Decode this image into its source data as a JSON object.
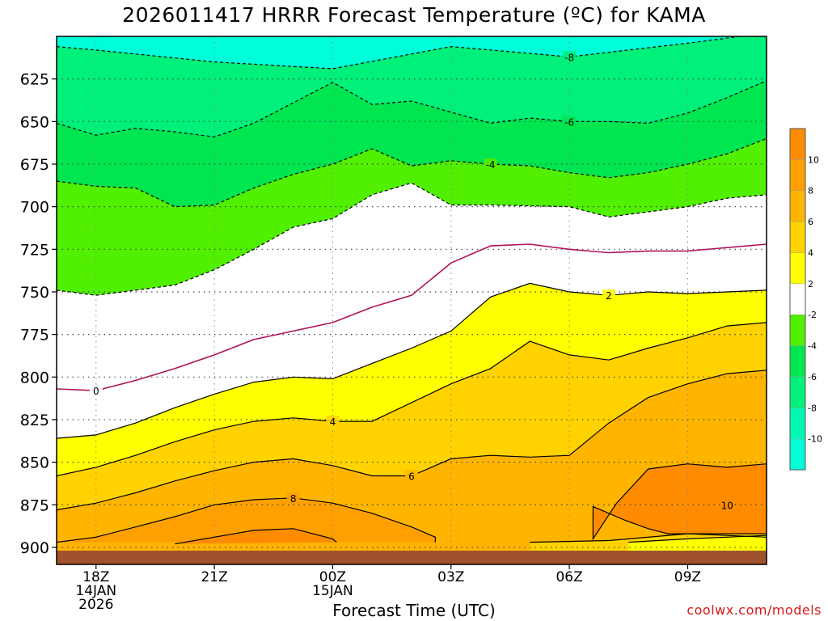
{
  "chart_data": {
    "type": "contour",
    "title": "2026011417 HRRR Forecast Temperature (ºC) for KAMA",
    "xlabel": "Forecast Time (UTC)",
    "ylabel": "",
    "credit": "coolwx.com/models",
    "y_axis": {
      "scale": "pressure (inverted)",
      "ylim": [
        910,
        600
      ],
      "ticks": [
        625,
        650,
        675,
        700,
        725,
        750,
        775,
        800,
        825,
        850,
        875,
        900
      ]
    },
    "x_axis": {
      "xlim_hours_from_start": [
        -1,
        17
      ],
      "tick_hours": [
        0,
        3,
        6,
        9,
        12,
        15
      ],
      "tick_labels": [
        {
          "label": "18Z",
          "sub1": "14JAN",
          "sub2": "2026"
        },
        {
          "label": "21Z",
          "sub1": "",
          "sub2": ""
        },
        {
          "label": "00Z",
          "sub1": "15JAN",
          "sub2": ""
        },
        {
          "label": "03Z",
          "sub1": "",
          "sub2": ""
        },
        {
          "label": "06Z",
          "sub1": "",
          "sub2": ""
        },
        {
          "label": "09Z",
          "sub1": "",
          "sub2": ""
        }
      ]
    },
    "grid": true,
    "colorbar": {
      "position": "right",
      "tick_labels": [
        "10",
        "8",
        "6",
        "4",
        "2",
        "-2",
        "-4",
        "-6",
        "-8",
        "-10"
      ],
      "bands": [
        {
          "range": [
            10,
            12
          ],
          "color": "#ff8c00"
        },
        {
          "range": [
            8,
            10
          ],
          "color": "#ffa000"
        },
        {
          "range": [
            6,
            8
          ],
          "color": "#ffb400"
        },
        {
          "range": [
            4,
            6
          ],
          "color": "#ffd200"
        },
        {
          "range": [
            2,
            4
          ],
          "color": "#ffff00"
        },
        {
          "range": [
            -2,
            2
          ],
          "color": "#ffffff"
        },
        {
          "range": [
            -4,
            -2
          ],
          "color": "#50f000"
        },
        {
          "range": [
            -6,
            -4
          ],
          "color": "#00e650"
        },
        {
          "range": [
            -8,
            -6
          ],
          "color": "#00f07a"
        },
        {
          "range": [
            -10,
            -8
          ],
          "color": "#00fab4"
        },
        {
          "range": [
            -12,
            -10
          ],
          "color": "#00ffd8"
        }
      ]
    },
    "ground_color": "#a0522d",
    "isotherms": [
      {
        "temp": -8,
        "label": "-8",
        "label_hour": 12,
        "style": "dashed",
        "points": [
          [
            -1,
            606
          ],
          [
            0,
            608
          ],
          [
            3,
            615
          ],
          [
            6,
            619
          ],
          [
            9,
            606
          ],
          [
            12,
            612
          ],
          [
            15,
            604
          ],
          [
            17,
            598
          ]
        ]
      },
      {
        "temp": -6,
        "label": "-6",
        "label_hour": 12,
        "style": "dashed",
        "points": [
          [
            -1,
            651
          ],
          [
            0,
            658
          ],
          [
            1,
            654
          ],
          [
            2,
            656
          ],
          [
            3,
            659
          ],
          [
            4,
            651
          ],
          [
            6,
            627
          ],
          [
            7,
            640
          ],
          [
            8,
            638
          ],
          [
            10,
            651
          ],
          [
            11,
            648
          ],
          [
            12,
            650
          ],
          [
            13,
            650
          ],
          [
            14,
            651
          ],
          [
            15,
            645
          ],
          [
            16,
            636
          ],
          [
            17,
            626
          ]
        ]
      },
      {
        "temp": -4,
        "label": "-4",
        "label_hour": 10,
        "style": "dashed",
        "points": [
          [
            -1,
            685
          ],
          [
            0,
            688
          ],
          [
            1,
            689
          ],
          [
            2,
            700
          ],
          [
            3,
            699
          ],
          [
            4,
            689
          ],
          [
            5,
            681
          ],
          [
            6,
            675
          ],
          [
            7,
            666
          ],
          [
            8,
            676
          ],
          [
            9,
            673
          ],
          [
            10,
            675
          ],
          [
            11,
            676
          ],
          [
            12,
            680
          ],
          [
            13,
            683
          ],
          [
            14,
            680
          ],
          [
            15,
            675
          ],
          [
            16,
            669
          ],
          [
            17,
            660
          ]
        ]
      },
      {
        "temp": -2,
        "label": "",
        "label_hour": null,
        "style": "dashed",
        "points": [
          [
            -1,
            749
          ],
          [
            0,
            752
          ],
          [
            1,
            749
          ],
          [
            2,
            746
          ],
          [
            3,
            737
          ],
          [
            4,
            725
          ],
          [
            5,
            712
          ],
          [
            6,
            707
          ],
          [
            7,
            693
          ],
          [
            8,
            686
          ],
          [
            9,
            699
          ],
          [
            10,
            699
          ],
          [
            12,
            700
          ],
          [
            13,
            706
          ],
          [
            14,
            703
          ],
          [
            15,
            700
          ],
          [
            16,
            695
          ],
          [
            17,
            693
          ]
        ]
      },
      {
        "temp": 0,
        "label": "0",
        "label_hour": 0,
        "style": "solid",
        "points": [
          [
            -1,
            807
          ],
          [
            0,
            808
          ],
          [
            1,
            802
          ],
          [
            2,
            795
          ],
          [
            3,
            787
          ],
          [
            4,
            778
          ],
          [
            5,
            773
          ],
          [
            6,
            768
          ],
          [
            7,
            759
          ],
          [
            8,
            752
          ],
          [
            9,
            733
          ],
          [
            10,
            723
          ],
          [
            11,
            722
          ],
          [
            12,
            725
          ],
          [
            13,
            727
          ],
          [
            14,
            726
          ],
          [
            15,
            726
          ],
          [
            16,
            724
          ],
          [
            17,
            722
          ]
        ]
      },
      {
        "temp": 2,
        "label": "2",
        "label_hour": 13,
        "style": "solid",
        "points": [
          [
            -1,
            836
          ],
          [
            0,
            834
          ],
          [
            1,
            827
          ],
          [
            2,
            818
          ],
          [
            3,
            810
          ],
          [
            4,
            803
          ],
          [
            5,
            800
          ],
          [
            6,
            801
          ],
          [
            7,
            792
          ],
          [
            8,
            783
          ],
          [
            9,
            773
          ],
          [
            10,
            753
          ],
          [
            11,
            745
          ],
          [
            12,
            750
          ],
          [
            13,
            752
          ],
          [
            14,
            750
          ],
          [
            15,
            751
          ],
          [
            16,
            750
          ],
          [
            17,
            749
          ]
        ]
      },
      {
        "temp": 4,
        "label": "4",
        "label_hour": 6,
        "style": "solid",
        "points": [
          [
            -1,
            858
          ],
          [
            0,
            853
          ],
          [
            1,
            846
          ],
          [
            2,
            838
          ],
          [
            3,
            831
          ],
          [
            4,
            826
          ],
          [
            5,
            824
          ],
          [
            6,
            826
          ],
          [
            7,
            826
          ],
          [
            8,
            815
          ],
          [
            9,
            804
          ],
          [
            10,
            795
          ],
          [
            11,
            779
          ],
          [
            12,
            787
          ],
          [
            13,
            790
          ],
          [
            14,
            783
          ],
          [
            15,
            777
          ],
          [
            16,
            770
          ],
          [
            17,
            768
          ]
        ]
      },
      {
        "temp": 6,
        "label": "6",
        "label_hour": 8,
        "style": "solid",
        "points": [
          [
            -1,
            878
          ],
          [
            0,
            874
          ],
          [
            1,
            868
          ],
          [
            2,
            861
          ],
          [
            3,
            855
          ],
          [
            4,
            850
          ],
          [
            5,
            848
          ],
          [
            6,
            852
          ],
          [
            7,
            858
          ],
          [
            8,
            858
          ],
          [
            9,
            848
          ],
          [
            10,
            846
          ],
          [
            11,
            847
          ],
          [
            12,
            846
          ],
          [
            13,
            827
          ],
          [
            14,
            812
          ],
          [
            15,
            804
          ],
          [
            16,
            798
          ],
          [
            17,
            796
          ]
        ]
      },
      {
        "temp": 8,
        "label": "8",
        "label_hour": 5,
        "style": "solid",
        "points": [
          [
            -1,
            897
          ],
          [
            0,
            894
          ],
          [
            1,
            888
          ],
          [
            2,
            882
          ],
          [
            3,
            875
          ],
          [
            4,
            872
          ],
          [
            5,
            871
          ],
          [
            6,
            874
          ],
          [
            7,
            880
          ],
          [
            8,
            888
          ],
          [
            8.6,
            894
          ],
          [
            8.6,
            897
          ]
        ]
      },
      {
        "temp": 10,
        "label": "",
        "label_hour": null,
        "style": "solid",
        "points": [
          [
            2,
            898
          ],
          [
            3,
            894
          ],
          [
            4,
            890
          ],
          [
            5,
            889
          ],
          [
            6,
            895
          ],
          [
            6.1,
            897
          ]
        ]
      },
      {
        "temp": 10,
        "label": "10",
        "label_hour": 16,
        "style": "solid",
        "points": [
          [
            12.6,
            895
          ],
          [
            13.2,
            874
          ],
          [
            14,
            854
          ],
          [
            15,
            851
          ],
          [
            16,
            853
          ],
          [
            17,
            851
          ],
          [
            17,
            894
          ],
          [
            16,
            893
          ],
          [
            15,
            892
          ],
          [
            14.5,
            892
          ],
          [
            14,
            889
          ],
          [
            13.4,
            884
          ],
          [
            12.6,
            876
          ]
        ]
      },
      {
        "temp": 6,
        "label": "",
        "label_hour": null,
        "style": "solid",
        "points": [
          [
            11,
            897
          ],
          [
            13,
            896
          ],
          [
            15,
            892
          ],
          [
            16,
            892
          ],
          [
            17,
            892
          ]
        ]
      },
      {
        "temp": 4,
        "label": "",
        "label_hour": null,
        "style": "solid",
        "points": [
          [
            13.5,
            897
          ],
          [
            15,
            895
          ],
          [
            16,
            894
          ],
          [
            17,
            893
          ]
        ]
      }
    ]
  }
}
